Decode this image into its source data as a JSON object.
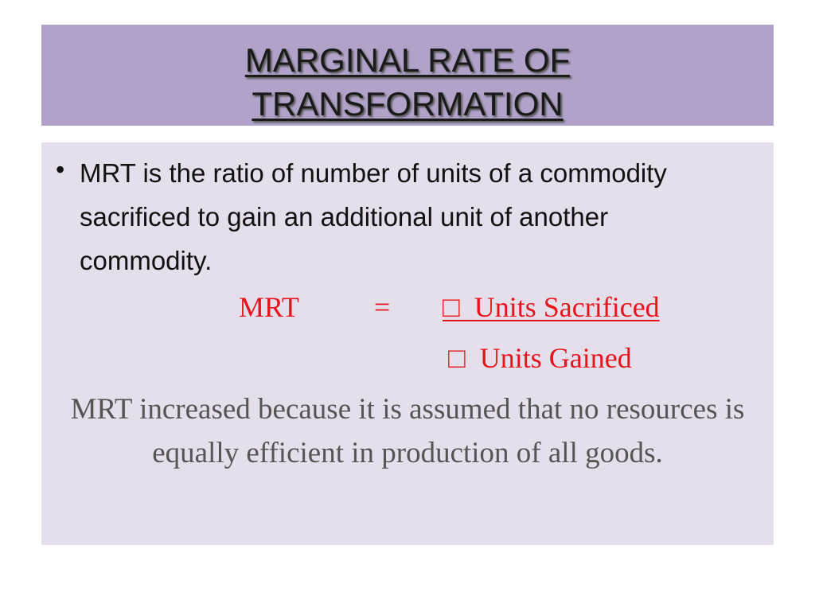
{
  "title": [
    "MARGINAL RATE OF",
    "TRANSFORMATION"
  ],
  "bullets": [
    "MRT is the ratio of number of units of a commodity  sacrificed to gain an additional unit of another  commodity."
  ],
  "formula": {
    "lhs": "MRT",
    "operator": "=",
    "numerator": "□  Units Sacrificed",
    "denominator": "□  Units Gained"
  },
  "conclusion": "MRT increased because it is assumed that no resources is equally efficient in production of all goods."
}
